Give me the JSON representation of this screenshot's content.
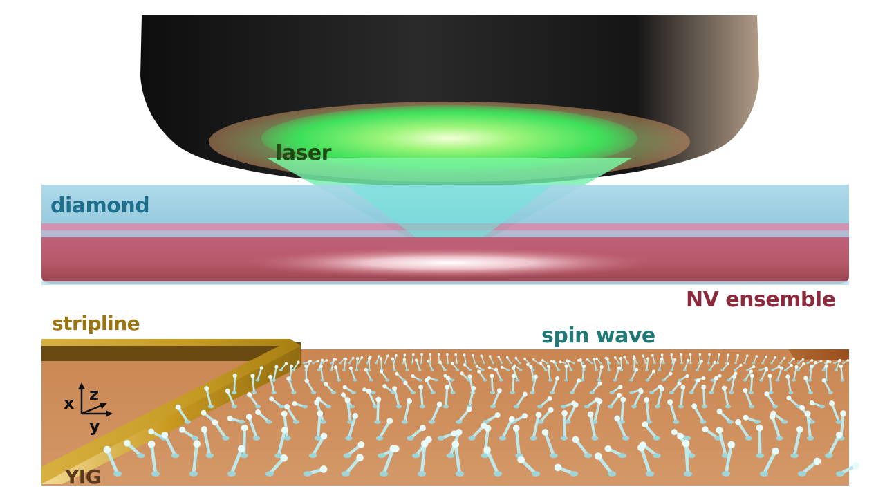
{
  "labels": {
    "laser": "laser",
    "diamond": "diamond",
    "nv_ensemble": "NV ensemble",
    "stripline": "stripline",
    "spin_wave": "spin wave",
    "yig": "YIG"
  },
  "axes": {
    "x": "x",
    "y": "y",
    "z": "z"
  },
  "colors": {
    "laser_text": "#1e4a14",
    "diamond_text": "#1f6f8c",
    "nv_text": "#8b2a3c",
    "stripline_text": "#9a7410",
    "spinwave_text": "#227a78",
    "yig_text": "#5a3a1a",
    "objective": "#1c1c1c",
    "diamond": "#9fd0e2",
    "nv_layer": "#b45866",
    "yig_slab": "#cf8d5c",
    "stripline": "#c0951a",
    "arrow": "#bfe8ea",
    "laser_glow": "#5ff06a"
  }
}
